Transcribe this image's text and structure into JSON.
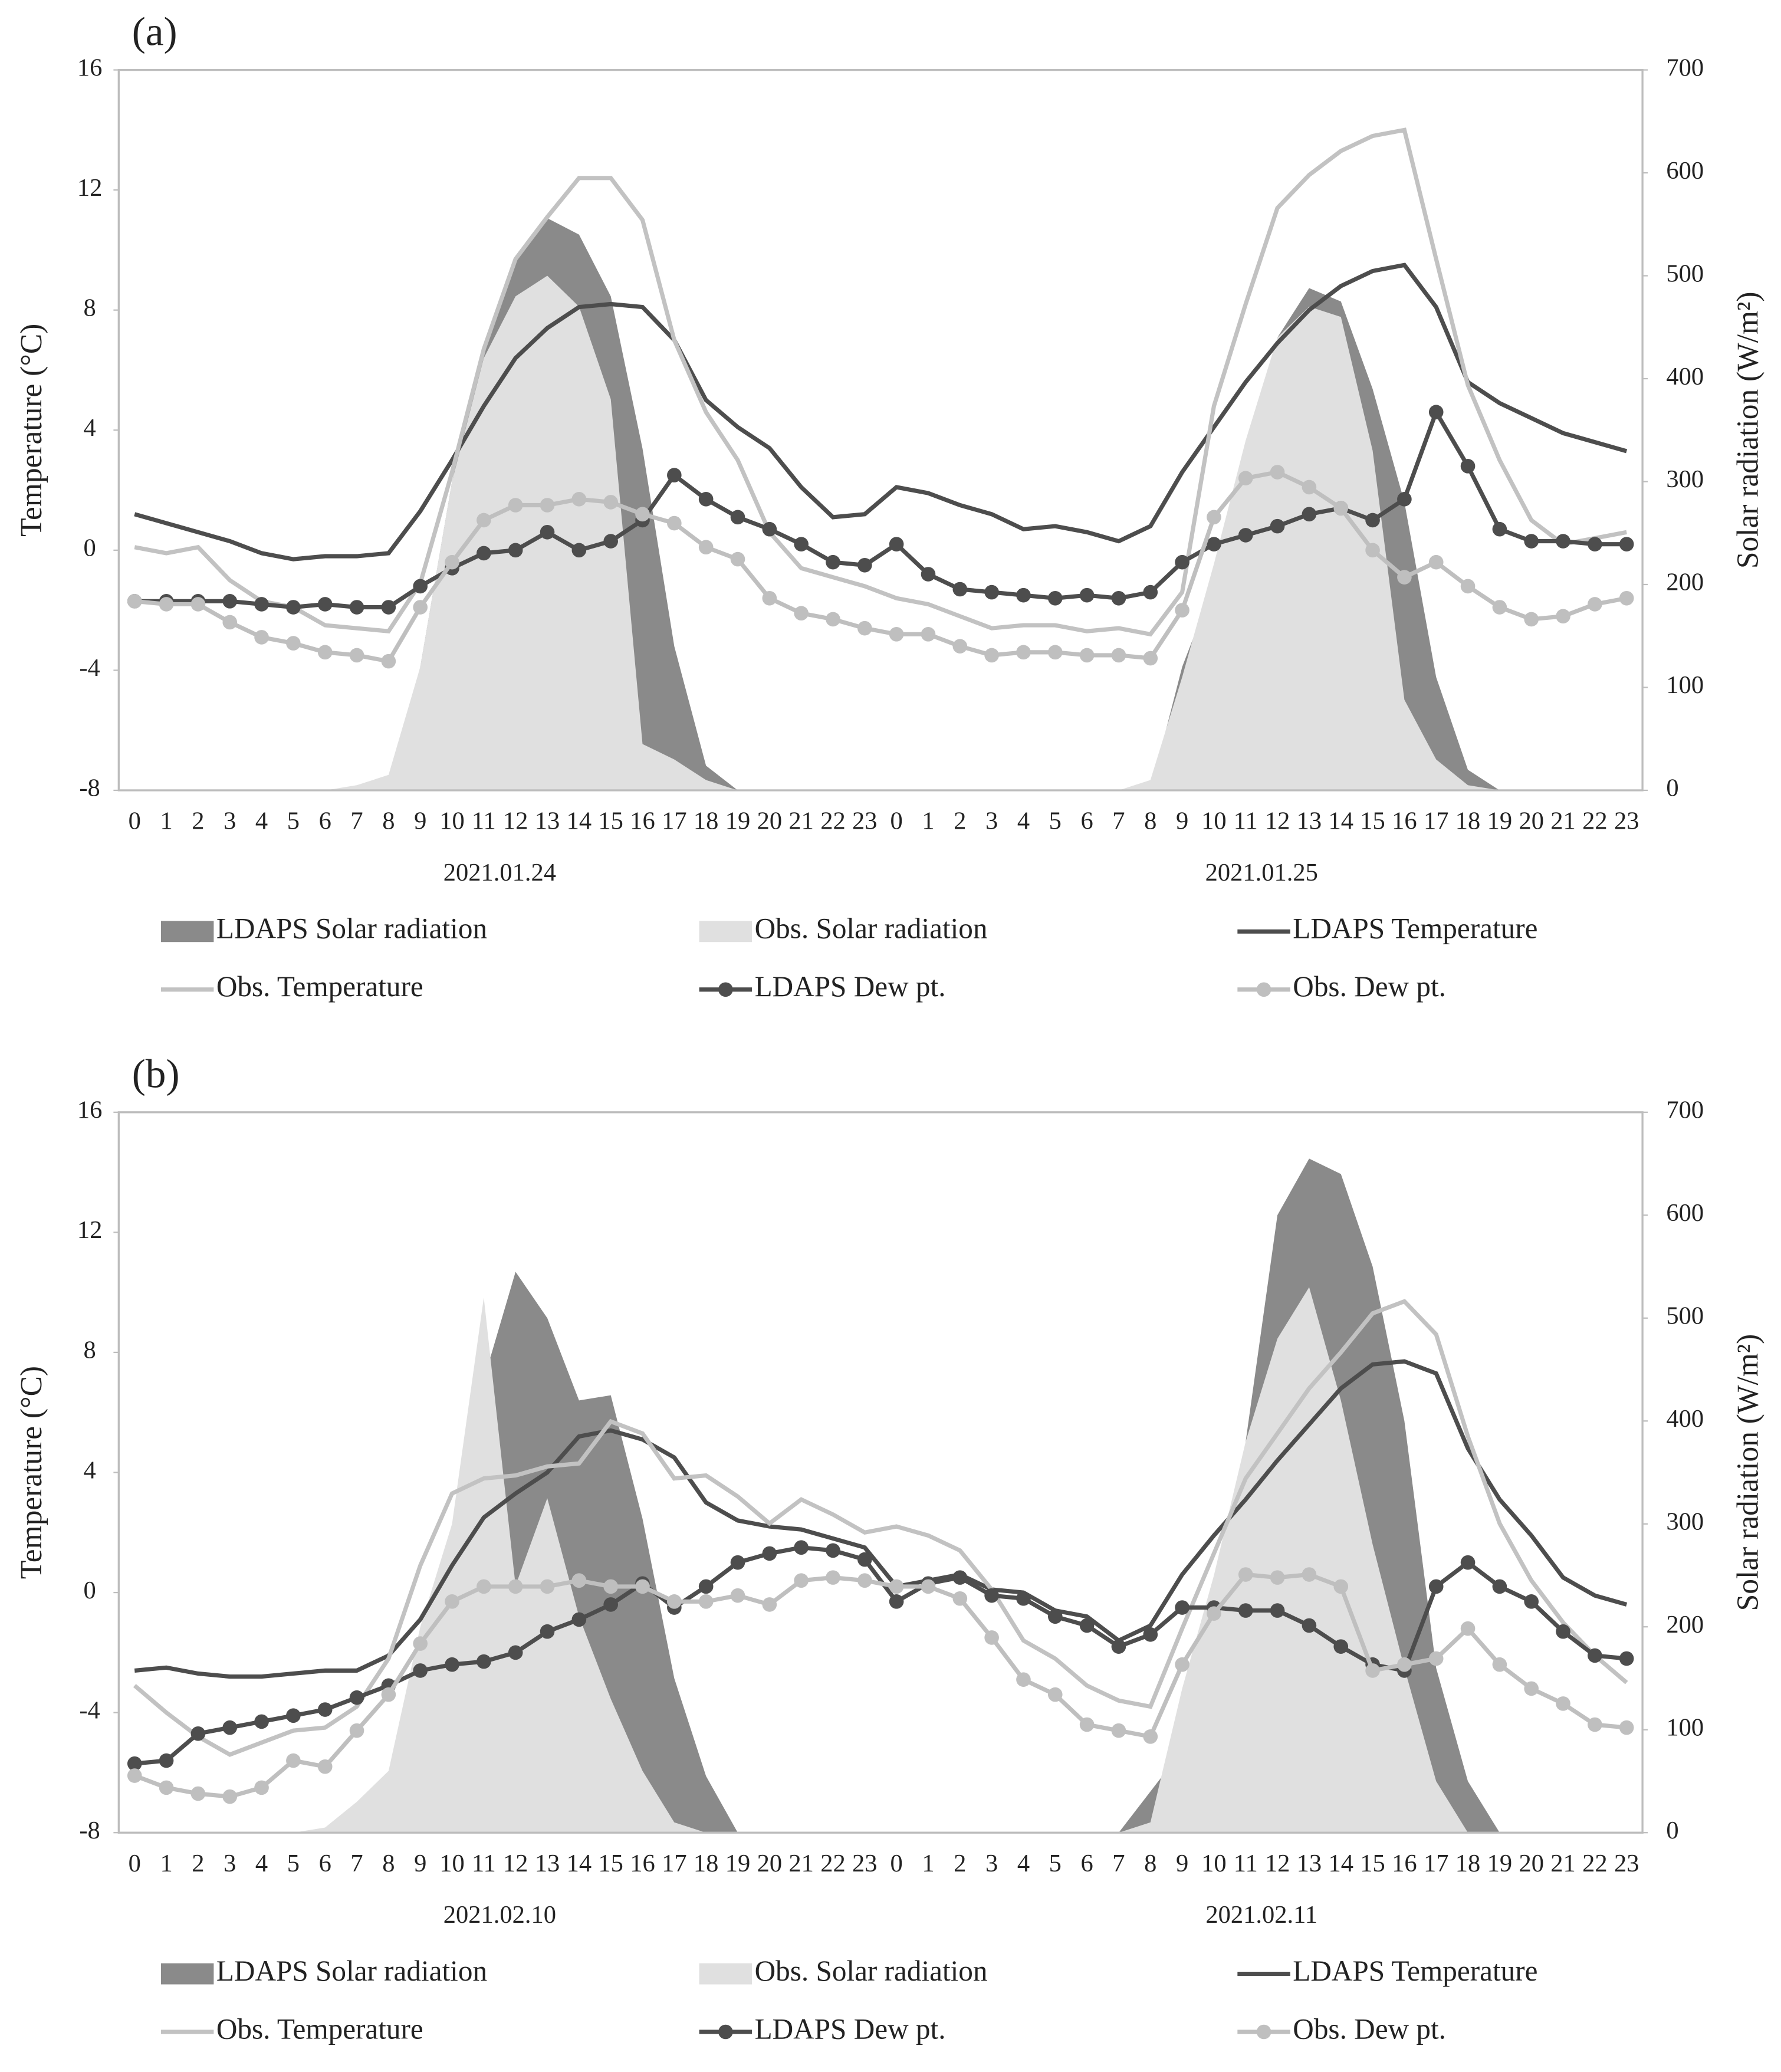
{
  "chart_data": [
    {
      "type": "line",
      "label": "(a)",
      "y_label": "Temperature (°C)",
      "y2_label": "Solar radiation (W/m²)",
      "categories": [
        "0",
        "1",
        "2",
        "3",
        "4",
        "5",
        "6",
        "7",
        "8",
        "9",
        "10",
        "11",
        "12",
        "13",
        "14",
        "15",
        "16",
        "17",
        "18",
        "19",
        "20",
        "21",
        "22",
        "23",
        "0",
        "1",
        "2",
        "3",
        "4",
        "5",
        "6",
        "7",
        "8",
        "9",
        "10",
        "11",
        "12",
        "13",
        "14",
        "15",
        "16",
        "17",
        "18",
        "19",
        "20",
        "21",
        "22",
        "23"
      ],
      "group_labels": [
        "2021.01.24",
        "2021.01.25"
      ],
      "ylim": [
        -8,
        16
      ],
      "yticks": [
        -8,
        -4,
        0,
        4,
        8,
        12,
        16
      ],
      "y2lim": [
        0,
        700
      ],
      "y2ticks": [
        0,
        100,
        200,
        300,
        400,
        500,
        600,
        700
      ],
      "series": [
        {
          "name": "LDAPS Solar radiation",
          "style": "area",
          "axis": "y2",
          "color": "#8a8a8a",
          "values": [
            0,
            0,
            0,
            0,
            0,
            0,
            0,
            0,
            0,
            120,
            300,
            432,
            515,
            556,
            540,
            480,
            332,
            140,
            24,
            0,
            0,
            0,
            0,
            0,
            0,
            0,
            0,
            0,
            0,
            0,
            0,
            0,
            0,
            120,
            200,
            280,
            440,
            488,
            475,
            390,
            280,
            110,
            20,
            0,
            0,
            0,
            0,
            0
          ]
        },
        {
          "name": "Obs. Solar radiation",
          "style": "area",
          "axis": "y2",
          "color": "#e0e0e0",
          "values": [
            0,
            0,
            0,
            0,
            0,
            0,
            0,
            5,
            15,
            120,
            300,
            420,
            480,
            500,
            470,
            380,
            45,
            30,
            10,
            0,
            0,
            0,
            0,
            0,
            0,
            0,
            0,
            0,
            0,
            0,
            0,
            0,
            10,
            110,
            220,
            340,
            440,
            470,
            460,
            330,
            88,
            30,
            5,
            0,
            0,
            0,
            0,
            0
          ]
        },
        {
          "name": "LDAPS Temperature",
          "style": "line",
          "color": "#4d4d4d",
          "values": [
            1.2,
            0.9,
            0.6,
            0.3,
            -0.1,
            -0.3,
            -0.2,
            -0.2,
            -0.1,
            1.3,
            3.0,
            4.8,
            6.4,
            7.4,
            8.1,
            8.2,
            8.1,
            7.0,
            5.0,
            4.1,
            3.4,
            2.1,
            1.1,
            1.2,
            2.1,
            1.9,
            1.5,
            1.2,
            0.7,
            0.8,
            0.6,
            0.3,
            0.8,
            2.6,
            4.1,
            5.6,
            6.9,
            8.0,
            8.8,
            9.3,
            9.5,
            8.1,
            5.6,
            4.9,
            4.4,
            3.9,
            3.6,
            3.3
          ]
        },
        {
          "name": "Obs. Temperature",
          "style": "line",
          "color": "#c2c2c2",
          "values": [
            0.1,
            -0.1,
            0.1,
            -1.0,
            -1.7,
            -1.9,
            -2.5,
            -2.6,
            -2.7,
            -1.1,
            2.6,
            6.7,
            9.7,
            11.1,
            12.4,
            12.4,
            11.0,
            7.0,
            4.6,
            3.0,
            0.6,
            -0.6,
            -0.9,
            -1.2,
            -1.6,
            -1.8,
            -2.2,
            -2.6,
            -2.5,
            -2.5,
            -2.7,
            -2.6,
            -2.8,
            -1.4,
            4.8,
            8.2,
            11.4,
            12.5,
            13.3,
            13.8,
            14.0,
            9.7,
            5.5,
            3.0,
            1.0,
            0.2,
            0.4,
            0.6
          ]
        },
        {
          "name": "LDAPS Dew pt.",
          "style": "marker-line",
          "color": "#4d4d4d",
          "values": [
            -1.7,
            -1.7,
            -1.7,
            -1.7,
            -1.8,
            -1.9,
            -1.8,
            -1.9,
            -1.9,
            -1.2,
            -0.6,
            -0.1,
            0.0,
            0.6,
            0.0,
            0.3,
            1.0,
            2.5,
            1.7,
            1.1,
            0.7,
            0.2,
            -0.4,
            -0.5,
            0.2,
            -0.8,
            -1.3,
            -1.4,
            -1.5,
            -1.6,
            -1.5,
            -1.6,
            -1.4,
            -0.4,
            0.2,
            0.5,
            0.8,
            1.2,
            1.4,
            1.0,
            1.7,
            4.6,
            2.8,
            0.7,
            0.3,
            0.3,
            0.2,
            0.2
          ]
        },
        {
          "name": "Obs. Dew pt.",
          "style": "marker-line",
          "color": "#bfbfbf",
          "values": [
            -1.7,
            -1.8,
            -1.8,
            -2.4,
            -2.9,
            -3.1,
            -3.4,
            -3.5,
            -3.7,
            -1.9,
            -0.4,
            1.0,
            1.5,
            1.5,
            1.7,
            1.6,
            1.2,
            0.9,
            0.1,
            -0.3,
            -1.6,
            -2.1,
            -2.3,
            -2.6,
            -2.8,
            -2.8,
            -3.2,
            -3.5,
            -3.4,
            -3.4,
            -3.5,
            -3.5,
            -3.6,
            -2.0,
            1.1,
            2.4,
            2.6,
            2.1,
            1.4,
            0.0,
            -0.9,
            -0.4,
            -1.2,
            -1.9,
            -2.3,
            -2.2,
            -1.8,
            -1.6
          ]
        }
      ]
    },
    {
      "type": "line",
      "label": "(b)",
      "y_label": "Temperature (°C)",
      "y2_label": "Solar radiation (W/m²)",
      "categories": [
        "0",
        "1",
        "2",
        "3",
        "4",
        "5",
        "6",
        "7",
        "8",
        "9",
        "10",
        "11",
        "12",
        "13",
        "14",
        "15",
        "16",
        "17",
        "18",
        "19",
        "20",
        "21",
        "22",
        "23",
        "0",
        "1",
        "2",
        "3",
        "4",
        "5",
        "6",
        "7",
        "8",
        "9",
        "10",
        "11",
        "12",
        "13",
        "14",
        "15",
        "16",
        "17",
        "18",
        "19",
        "20",
        "21",
        "22",
        "23"
      ],
      "group_labels": [
        "2021.02.10",
        "2021.02.11"
      ],
      "ylim": [
        -8,
        16
      ],
      "yticks": [
        -8,
        -4,
        0,
        4,
        8,
        12,
        16
      ],
      "y2lim": [
        0,
        700
      ],
      "y2ticks": [
        0,
        100,
        200,
        300,
        400,
        500,
        600,
        700
      ],
      "series": [
        {
          "name": "LDAPS Solar radiation",
          "style": "area",
          "axis": "y2",
          "color": "#8a8a8a",
          "values": [
            0,
            0,
            0,
            0,
            0,
            0,
            0,
            0,
            0,
            0,
            100,
            440,
            545,
            500,
            420,
            425,
            305,
            150,
            55,
            0,
            0,
            0,
            0,
            0,
            0,
            0,
            0,
            0,
            0,
            0,
            0,
            0,
            40,
            80,
            120,
            380,
            600,
            655,
            640,
            550,
            400,
            160,
            50,
            0,
            0,
            0,
            0,
            0
          ]
        },
        {
          "name": "Obs. Solar radiation",
          "style": "area",
          "axis": "y2",
          "color": "#e0e0e0",
          "values": [
            0,
            0,
            0,
            0,
            0,
            0,
            5,
            30,
            60,
            200,
            300,
            520,
            240,
            325,
            210,
            130,
            60,
            10,
            0,
            0,
            0,
            0,
            0,
            0,
            0,
            0,
            0,
            0,
            0,
            0,
            0,
            0,
            10,
            140,
            250,
            380,
            480,
            530,
            420,
            280,
            160,
            50,
            0,
            0,
            0,
            0,
            0,
            0
          ]
        },
        {
          "name": "LDAPS Temperature",
          "style": "line",
          "color": "#4d4d4d",
          "values": [
            -2.6,
            -2.5,
            -2.7,
            -2.8,
            -2.8,
            -2.7,
            -2.6,
            -2.6,
            -2.1,
            -0.9,
            0.9,
            2.5,
            3.3,
            4.0,
            5.2,
            5.4,
            5.1,
            4.5,
            3.0,
            2.4,
            2.2,
            2.1,
            1.8,
            1.5,
            0.2,
            0.4,
            0.6,
            0.1,
            0.0,
            -0.6,
            -0.8,
            -1.6,
            -1.1,
            0.6,
            1.9,
            3.1,
            4.4,
            5.6,
            6.8,
            7.6,
            7.7,
            7.3,
            4.8,
            3.1,
            1.9,
            0.5,
            -0.1,
            -0.4
          ]
        },
        {
          "name": "Obs. Temperature",
          "style": "line",
          "color": "#c2c2c2",
          "values": [
            -3.1,
            -4.0,
            -4.8,
            -5.4,
            -5.0,
            -4.6,
            -4.5,
            -3.8,
            -2.2,
            0.9,
            3.3,
            3.8,
            3.9,
            4.2,
            4.3,
            5.7,
            5.3,
            3.8,
            3.9,
            3.2,
            2.3,
            3.1,
            2.6,
            2.0,
            2.2,
            1.9,
            1.4,
            0.1,
            -1.6,
            -2.2,
            -3.1,
            -3.6,
            -3.8,
            -1.2,
            1.3,
            3.8,
            5.3,
            6.8,
            8.0,
            9.3,
            9.7,
            8.6,
            5.2,
            2.3,
            0.4,
            -1.0,
            -2.1,
            -3.0
          ]
        },
        {
          "name": "LDAPS Dew pt.",
          "style": "marker-line",
          "color": "#4d4d4d",
          "values": [
            -5.7,
            -5.6,
            -4.7,
            -4.5,
            -4.3,
            -4.1,
            -3.9,
            -3.5,
            -3.1,
            -2.6,
            -2.4,
            -2.3,
            -2.0,
            -1.3,
            -0.9,
            -0.4,
            0.3,
            -0.5,
            0.2,
            1.0,
            1.3,
            1.5,
            1.4,
            1.1,
            -0.3,
            0.3,
            0.5,
            -0.1,
            -0.2,
            -0.8,
            -1.1,
            -1.8,
            -1.4,
            -0.5,
            -0.5,
            -0.6,
            -0.6,
            -1.1,
            -1.8,
            -2.4,
            -2.6,
            0.2,
            1.0,
            0.2,
            -0.3,
            -1.3,
            -2.1,
            -2.2
          ]
        },
        {
          "name": "Obs. Dew pt.",
          "style": "marker-line",
          "color": "#bfbfbf",
          "values": [
            -6.1,
            -6.5,
            -6.7,
            -6.8,
            -6.5,
            -5.6,
            -5.8,
            -4.6,
            -3.4,
            -1.7,
            -0.3,
            0.2,
            0.2,
            0.2,
            0.4,
            0.2,
            0.2,
            -0.3,
            -0.3,
            -0.1,
            -0.4,
            0.4,
            0.5,
            0.4,
            0.2,
            0.2,
            -0.2,
            -1.5,
            -2.9,
            -3.4,
            -4.4,
            -4.6,
            -4.8,
            -2.4,
            -0.7,
            0.6,
            0.5,
            0.6,
            0.2,
            -2.6,
            -2.4,
            -2.2,
            -1.2,
            -2.4,
            -3.2,
            -3.7,
            -4.4,
            -4.5
          ]
        }
      ]
    }
  ]
}
